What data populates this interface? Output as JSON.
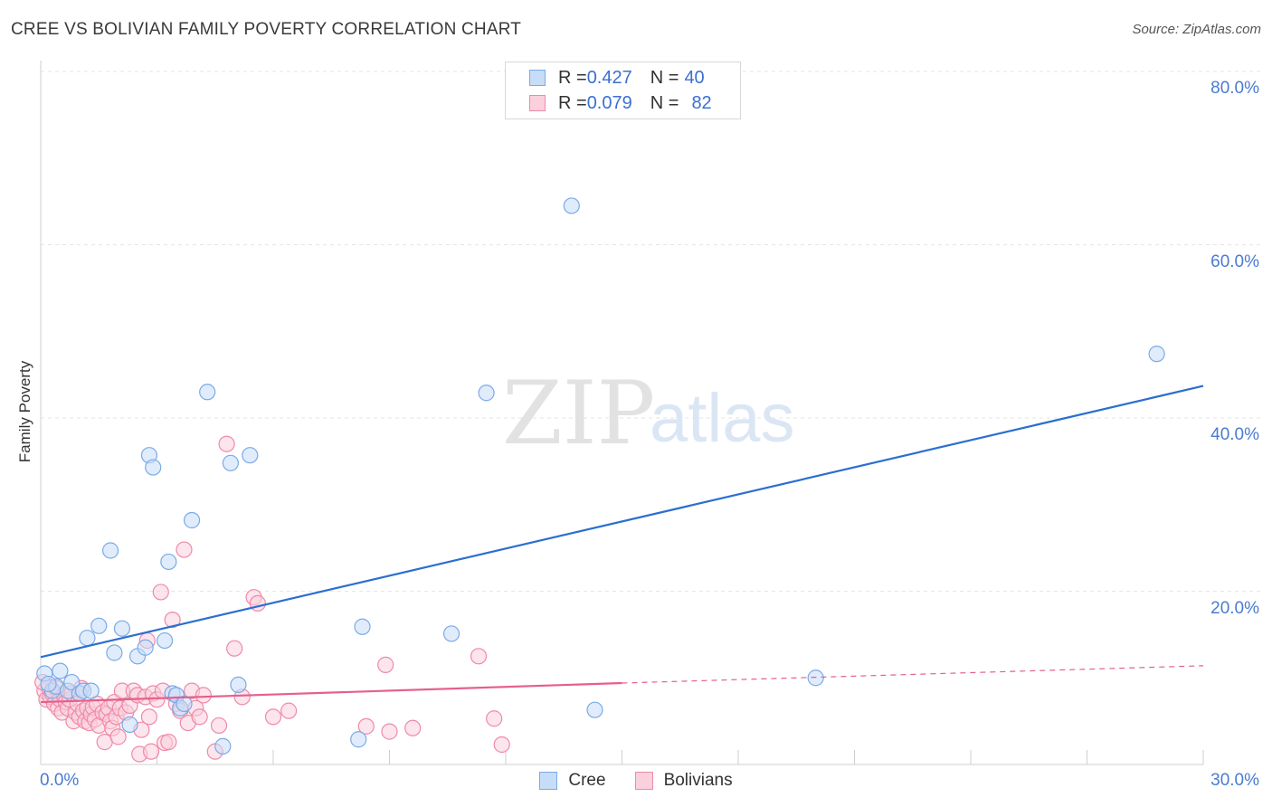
{
  "title": "CREE VS BOLIVIAN FAMILY POVERTY CORRELATION CHART",
  "source": "Source: ZipAtlas.com",
  "watermark": {
    "zip": "ZIP",
    "atlas": "atlas"
  },
  "stats": [
    {
      "r_label": "R = ",
      "r_value": "0.427",
      "n_label": "N = ",
      "n_value": "40"
    },
    {
      "r_label": "R = ",
      "r_value": "0.079",
      "n_label": "N = ",
      "n_value": "82"
    }
  ],
  "legend": {
    "cree": "Cree",
    "bolivians": "Bolivians"
  },
  "colors": {
    "cree": "#7aaae8",
    "cree_fill": "#c7dcf7",
    "bolivians": "#ef8aa8",
    "bolivians_fill": "#f9d0dc",
    "cree_line": "#2a6fd1",
    "bol_line": "#e5608a",
    "grid": "#e6e6e6",
    "tick": "#4a7bd0"
  },
  "chart_data": {
    "type": "scatter",
    "title": "CREE VS BOLIVIAN FAMILY POVERTY CORRELATION CHART",
    "xlabel": "",
    "ylabel": "Family Poverty",
    "xlim": [
      0,
      30
    ],
    "ylim": [
      0,
      80
    ],
    "x_ticks": [
      0,
      3,
      6,
      9,
      12,
      15,
      18,
      21,
      24,
      27,
      30
    ],
    "x_tick_labels": {
      "left": "0.0%",
      "right": "30.0%"
    },
    "y_ticks": [
      20,
      40,
      60,
      80
    ],
    "y_tick_labels": [
      "20.0%",
      "40.0%",
      "60.0%",
      "80.0%"
    ],
    "grid": true,
    "series": [
      {
        "name": "Cree",
        "trend": {
          "x": [
            0,
            30
          ],
          "y": [
            12.4,
            43.7
          ]
        },
        "points": [
          [
            0.1,
            10.5
          ],
          [
            0.3,
            8.5
          ],
          [
            0.4,
            9.0
          ],
          [
            0.5,
            10.8
          ],
          [
            0.7,
            8.5
          ],
          [
            0.8,
            9.5
          ],
          [
            1.0,
            8.2
          ],
          [
            1.1,
            8.5
          ],
          [
            1.2,
            14.6
          ],
          [
            1.3,
            8.5
          ],
          [
            1.5,
            16.0
          ],
          [
            1.8,
            24.7
          ],
          [
            1.9,
            12.9
          ],
          [
            2.1,
            15.7
          ],
          [
            2.3,
            4.6
          ],
          [
            2.5,
            12.5
          ],
          [
            2.7,
            13.5
          ],
          [
            2.8,
            35.7
          ],
          [
            2.9,
            34.3
          ],
          [
            3.2,
            14.3
          ],
          [
            3.3,
            23.4
          ],
          [
            3.4,
            8.2
          ],
          [
            3.5,
            8.0
          ],
          [
            3.6,
            6.5
          ],
          [
            3.7,
            7.0
          ],
          [
            3.9,
            28.2
          ],
          [
            4.3,
            43.0
          ],
          [
            4.7,
            2.1
          ],
          [
            4.9,
            34.8
          ],
          [
            5.1,
            9.2
          ],
          [
            5.4,
            35.7
          ],
          [
            8.2,
            2.9
          ],
          [
            8.3,
            15.9
          ],
          [
            10.6,
            15.1
          ],
          [
            11.5,
            42.9
          ],
          [
            13.7,
            64.5
          ],
          [
            14.3,
            6.3
          ],
          [
            20.0,
            10.0
          ],
          [
            28.8,
            47.4
          ],
          [
            0.2,
            9.3
          ]
        ]
      },
      {
        "name": "Bolivians",
        "trend": {
          "x": [
            0,
            15
          ],
          "y": [
            7.2,
            9.4
          ],
          "dashed_to": {
            "x": 30,
            "y": 11.4
          }
        },
        "points": [
          [
            0.1,
            8.5
          ],
          [
            0.15,
            7.5
          ],
          [
            0.2,
            9.0
          ],
          [
            0.25,
            7.8
          ],
          [
            0.3,
            8.2
          ],
          [
            0.35,
            7.0
          ],
          [
            0.4,
            8.8
          ],
          [
            0.45,
            6.5
          ],
          [
            0.5,
            7.5
          ],
          [
            0.55,
            6.0
          ],
          [
            0.6,
            8.0
          ],
          [
            0.65,
            7.2
          ],
          [
            0.7,
            6.5
          ],
          [
            0.75,
            7.5
          ],
          [
            0.8,
            8.2
          ],
          [
            0.85,
            5.0
          ],
          [
            0.9,
            6.0
          ],
          [
            0.95,
            7.0
          ],
          [
            1.0,
            5.5
          ],
          [
            1.05,
            8.8
          ],
          [
            1.1,
            6.2
          ],
          [
            1.15,
            5.0
          ],
          [
            1.2,
            6.5
          ],
          [
            1.25,
            4.8
          ],
          [
            1.3,
            5.8
          ],
          [
            1.35,
            6.6
          ],
          [
            1.4,
            5.2
          ],
          [
            1.45,
            7.0
          ],
          [
            1.5,
            4.5
          ],
          [
            1.6,
            6.0
          ],
          [
            1.65,
            2.6
          ],
          [
            1.7,
            5.8
          ],
          [
            1.75,
            6.5
          ],
          [
            1.8,
            5.0
          ],
          [
            1.85,
            4.2
          ],
          [
            1.9,
            7.2
          ],
          [
            1.95,
            5.5
          ],
          [
            2.0,
            3.2
          ],
          [
            2.05,
            6.5
          ],
          [
            2.1,
            8.5
          ],
          [
            2.2,
            6.0
          ],
          [
            2.3,
            6.8
          ],
          [
            2.4,
            8.5
          ],
          [
            2.5,
            8.0
          ],
          [
            2.55,
            1.2
          ],
          [
            2.6,
            4.0
          ],
          [
            2.7,
            7.8
          ],
          [
            2.75,
            14.3
          ],
          [
            2.8,
            5.5
          ],
          [
            2.85,
            1.5
          ],
          [
            2.9,
            8.2
          ],
          [
            3.0,
            7.5
          ],
          [
            3.1,
            19.9
          ],
          [
            3.15,
            8.5
          ],
          [
            3.2,
            2.5
          ],
          [
            3.3,
            2.6
          ],
          [
            3.4,
            16.7
          ],
          [
            3.5,
            7.0
          ],
          [
            3.6,
            6.2
          ],
          [
            3.7,
            24.8
          ],
          [
            3.8,
            4.8
          ],
          [
            3.9,
            8.5
          ],
          [
            4.0,
            6.5
          ],
          [
            4.1,
            5.5
          ],
          [
            4.2,
            8.0
          ],
          [
            4.5,
            1.5
          ],
          [
            4.6,
            4.5
          ],
          [
            4.8,
            37.0
          ],
          [
            5.0,
            13.4
          ],
          [
            5.2,
            7.8
          ],
          [
            5.5,
            19.3
          ],
          [
            5.6,
            18.6
          ],
          [
            6.0,
            5.5
          ],
          [
            6.4,
            6.2
          ],
          [
            8.4,
            4.4
          ],
          [
            8.9,
            11.5
          ],
          [
            9.0,
            3.8
          ],
          [
            9.6,
            4.2
          ],
          [
            11.3,
            12.5
          ],
          [
            11.7,
            5.3
          ],
          [
            11.9,
            2.3
          ],
          [
            0.05,
            9.5
          ]
        ]
      }
    ]
  }
}
